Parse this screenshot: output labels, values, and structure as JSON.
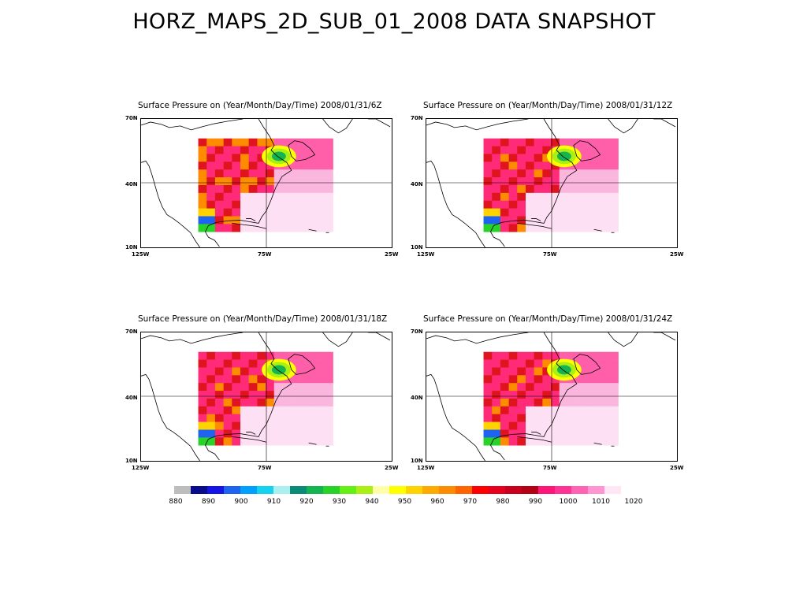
{
  "page": {
    "title": "HORZ_MAPS_2D_SUB_01_2008 DATA SNAPSHOT"
  },
  "panels": [
    {
      "title": "Surface Pressure  on (Year/Month/Day/Time) 2008/01/31/6Z"
    },
    {
      "title": "Surface Pressure  on (Year/Month/Day/Time) 2008/01/31/12Z"
    },
    {
      "title": "Surface Pressure  on (Year/Month/Day/Time) 2008/01/31/18Z"
    },
    {
      "title": "Surface Pressure  on (Year/Month/Day/Time) 2008/01/31/24Z"
    }
  ],
  "axes": {
    "lat_labels": [
      "70N",
      "40N",
      "10N"
    ],
    "lon_labels": [
      "125W",
      "75W",
      "25W"
    ]
  },
  "colorbar": {
    "colors": [
      "#bdbdbd",
      "#0a0a8c",
      "#1414e6",
      "#1e64f0",
      "#00a0ff",
      "#14d2f0",
      "#aaf0f0",
      "#0a8c78",
      "#14b450",
      "#28d228",
      "#64f014",
      "#aaf014",
      "#ffffaa",
      "#ffff00",
      "#ffd200",
      "#ffaa00",
      "#ff8c00",
      "#ff6400",
      "#ff0000",
      "#e6001e",
      "#c8001e",
      "#b40014",
      "#ff1478",
      "#ff3296",
      "#ff64b4",
      "#ff96d2",
      "#ffe6f5"
    ],
    "tick_labels": [
      "880",
      "890",
      "900",
      "910",
      "920",
      "930",
      "940",
      "950",
      "960",
      "970",
      "980",
      "990",
      "1000",
      "1010",
      "1020"
    ]
  }
}
